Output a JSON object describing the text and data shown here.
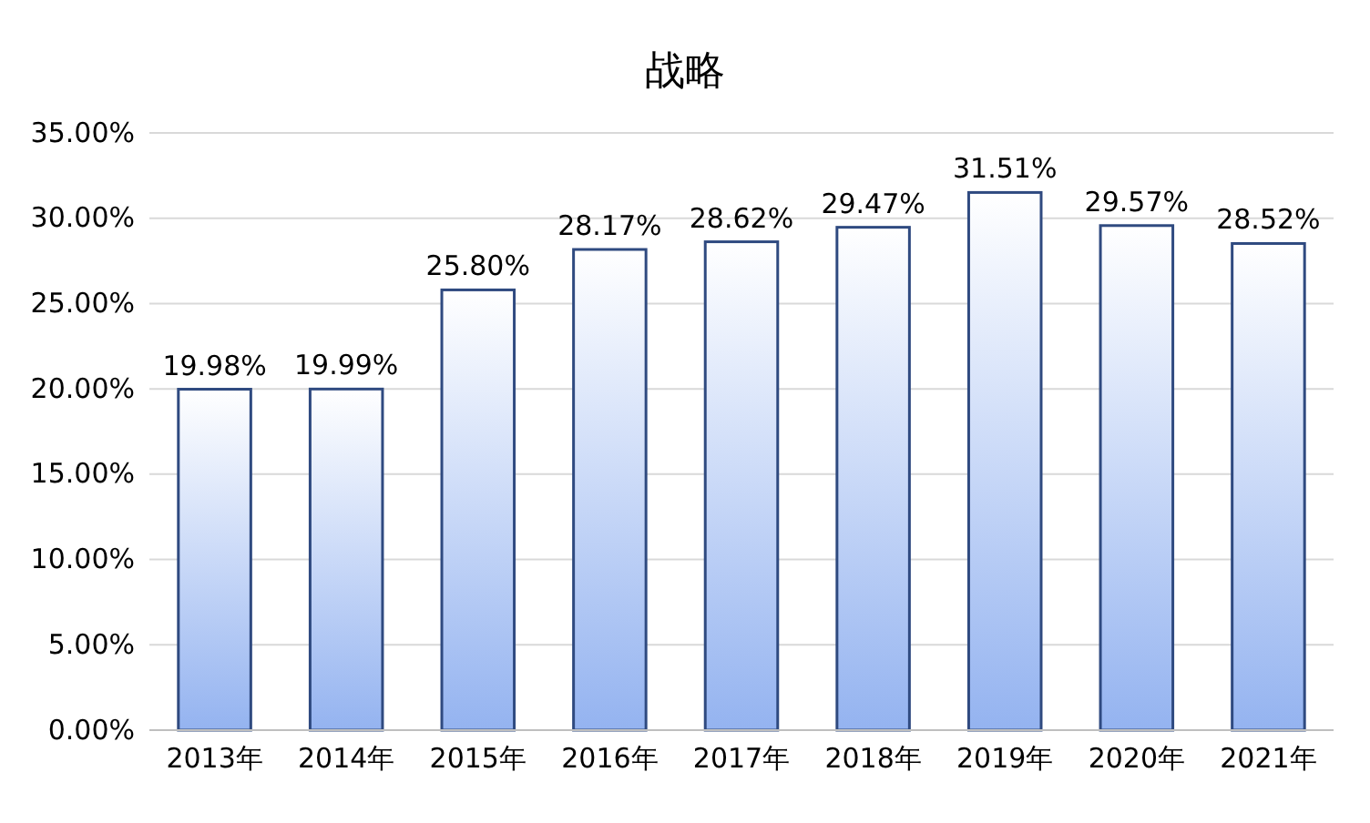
{
  "chart_data": {
    "type": "bar",
    "title": "战略",
    "categories": [
      "2013年",
      "2014年",
      "2015年",
      "2016年",
      "2017年",
      "2018年",
      "2019年",
      "2020年",
      "2021年"
    ],
    "series": [
      {
        "color": "#2f4a80",
        "values": [
          19.98,
          19.99,
          25.8,
          28.17,
          28.62,
          29.47,
          31.51,
          29.57,
          28.52
        ]
      }
    ],
    "value_labels": [
      "19.98%",
      "19.99%",
      "25.80%",
      "28.17%",
      "28.62%",
      "29.47%",
      "31.51%",
      "29.57%",
      "28.52%"
    ],
    "ylim": [
      0,
      35
    ],
    "yticks": [
      {
        "value": 0,
        "label": "0.00%"
      },
      {
        "value": 5,
        "label": "5.00%"
      },
      {
        "value": 10,
        "label": "10.00%"
      },
      {
        "value": 15,
        "label": "15.00%"
      },
      {
        "value": 20,
        "label": "20.00%"
      },
      {
        "value": 25,
        "label": "25.00%"
      },
      {
        "value": 30,
        "label": "30.00%"
      },
      {
        "value": 35,
        "label": "35.00%"
      }
    ],
    "grid": "y"
  }
}
